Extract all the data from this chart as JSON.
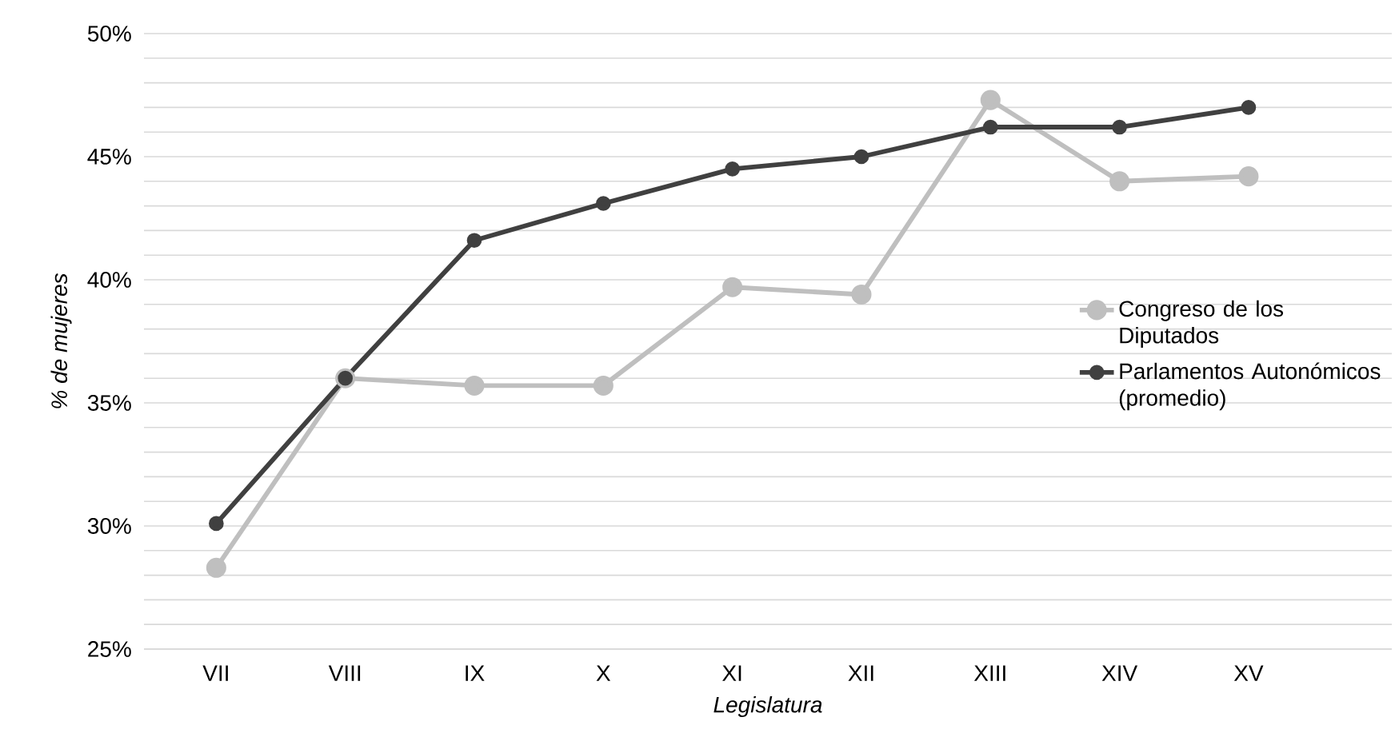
{
  "chart_data": {
    "type": "line",
    "xlabel": "Legislatura",
    "ylabel": "% de mujeres",
    "categories": [
      "VII",
      "VIII",
      "IX",
      "X",
      "XI",
      "XII",
      "XIII",
      "XIV",
      "XV"
    ],
    "series": [
      {
        "name": "Congreso de los Diputados",
        "color": "#bfbfbf",
        "values": [
          28.3,
          36.0,
          35.7,
          35.7,
          39.7,
          39.4,
          47.3,
          44.0,
          44.2
        ]
      },
      {
        "name": "Parlamentos Autonómicos (promedio)",
        "color": "#404040",
        "values": [
          30.1,
          36.0,
          41.6,
          43.1,
          44.5,
          45.0,
          46.2,
          46.2,
          47.0
        ]
      }
    ],
    "ylim": [
      25,
      50
    ],
    "yticks": [
      {
        "value": 25,
        "label": "25%"
      },
      {
        "value": 26,
        "label": null
      },
      {
        "value": 27,
        "label": null
      },
      {
        "value": 28,
        "label": null
      },
      {
        "value": 29,
        "label": null
      },
      {
        "value": 30,
        "label": "30%"
      },
      {
        "value": 31,
        "label": null
      },
      {
        "value": 32,
        "label": null
      },
      {
        "value": 33,
        "label": null
      },
      {
        "value": 34,
        "label": null
      },
      {
        "value": 35,
        "label": "35%"
      },
      {
        "value": 36,
        "label": null
      },
      {
        "value": 37,
        "label": null
      },
      {
        "value": 38,
        "label": null
      },
      {
        "value": 39,
        "label": null
      },
      {
        "value": 40,
        "label": "40%"
      },
      {
        "value": 41,
        "label": null
      },
      {
        "value": 42,
        "label": null
      },
      {
        "value": 43,
        "label": null
      },
      {
        "value": 44,
        "label": null
      },
      {
        "value": 45,
        "label": "45%"
      },
      {
        "value": 46,
        "label": null
      },
      {
        "value": 47,
        "label": null
      },
      {
        "value": 48,
        "label": null
      },
      {
        "value": 49,
        "label": null
      },
      {
        "value": 50,
        "label": "50%"
      }
    ],
    "grid": "y",
    "legend": "right",
    "marker": "circle",
    "line_style": "solid"
  }
}
